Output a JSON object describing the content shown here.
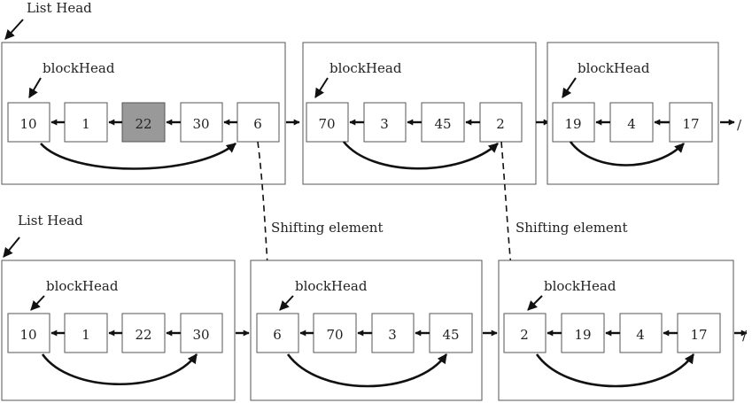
{
  "top_row": {
    "list_head_label": "List Head",
    "blocks": [
      {
        "label": "blockHead",
        "cells": [
          {
            "value": "10",
            "highlighted": false
          },
          {
            "value": "1",
            "highlighted": false
          },
          {
            "value": "22",
            "highlighted": true
          },
          {
            "value": "30",
            "highlighted": false
          },
          {
            "value": "6",
            "highlighted": false
          }
        ]
      },
      {
        "label": "blockHead",
        "cells": [
          {
            "value": "70",
            "highlighted": false
          },
          {
            "value": "3",
            "highlighted": false
          },
          {
            "value": "45",
            "highlighted": false
          },
          {
            "value": "2",
            "highlighted": false
          }
        ]
      },
      {
        "label": "blockHead",
        "cells": [
          {
            "value": "19",
            "highlighted": false
          },
          {
            "value": "4",
            "highlighted": false
          },
          {
            "value": "17",
            "highlighted": false
          }
        ]
      }
    ],
    "terminator": "/"
  },
  "bottom_row": {
    "list_head_label": "List Head",
    "blocks": [
      {
        "label": "blockHead",
        "cells": [
          {
            "value": "10"
          },
          {
            "value": "1"
          },
          {
            "value": "22"
          },
          {
            "value": "30"
          }
        ]
      },
      {
        "label": "blockHead",
        "cells": [
          {
            "value": "6"
          },
          {
            "value": "70"
          },
          {
            "value": "3"
          },
          {
            "value": "45"
          }
        ]
      },
      {
        "label": "blockHead",
        "cells": [
          {
            "value": "2"
          },
          {
            "value": "19"
          },
          {
            "value": "4"
          },
          {
            "value": "17"
          }
        ]
      }
    ],
    "terminator": "/"
  },
  "shift_labels": [
    "Shifting element",
    "Shifting element"
  ],
  "colors": {
    "highlight_fill": "#999999",
    "stroke": "#111111",
    "box_border": "#555555"
  }
}
